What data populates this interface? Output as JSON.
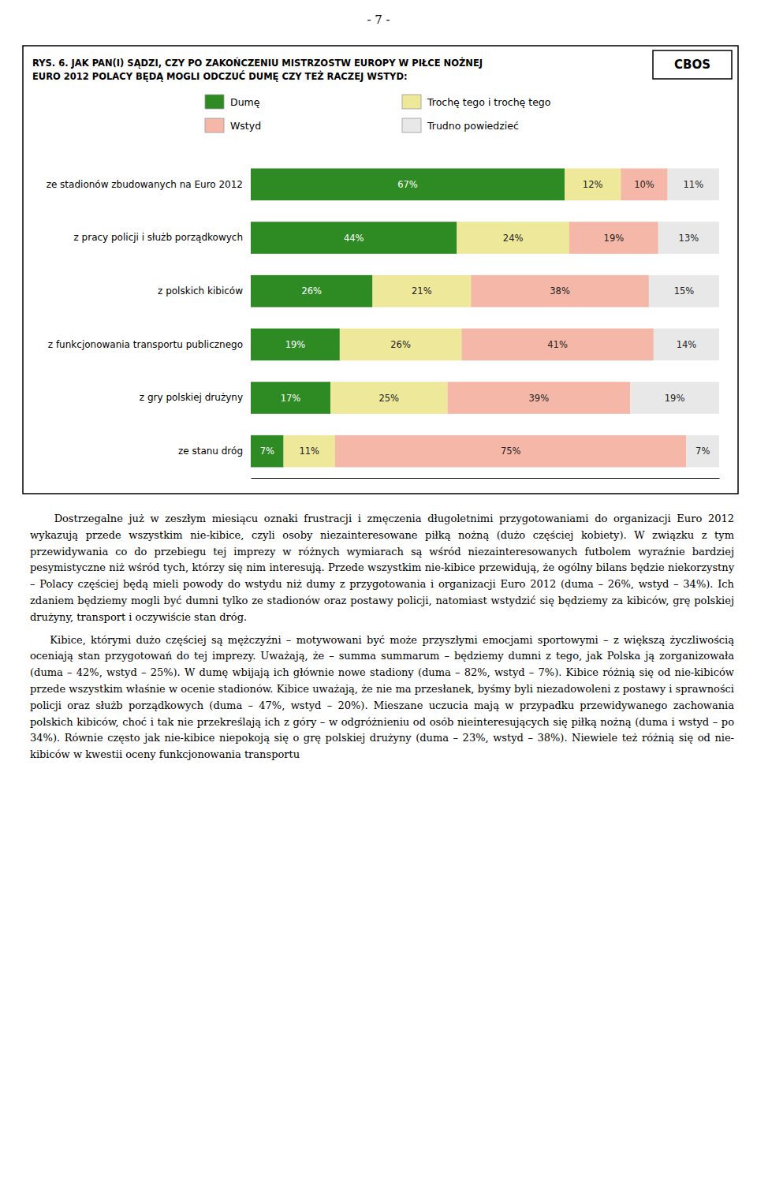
{
  "chart_data": {
    "type": "bar",
    "orientation": "horizontal",
    "stacked": true,
    "data_labels": true,
    "tick_labels": "y",
    "legend": "top",
    "title": "RYS. 6. JAK PAN(I) SĄDZI, CZY PO ZAKOŃCZENIU MISTRZOSTW EUROPY W PIŁCE NOŻNEJ\nEURO 2012 POLACY BĘDĄ MOGLI ODCZUĆ DUMĘ CZY TEŻ RACZEJ WSTYD:",
    "annotations": [
      "CBOS"
    ],
    "categories": [
      "ze stadionów zbudowanych na Euro 2012",
      "z pracy policji i służb porządkowych",
      "z polskich kibiców",
      "z funkcjonowania transportu publicznego",
      "z gry polskiej drużyny",
      "ze stanu dróg"
    ],
    "xlim": [
      0,
      100
    ],
    "series": [
      {
        "name": "Dumę",
        "color": "#2E8B24",
        "values": [
          67,
          44,
          26,
          19,
          17,
          7
        ],
        "value_labels": [
          "67%",
          "44%",
          "26%",
          "19%",
          "17%",
          "7%"
        ]
      },
      {
        "name": "Trochę tego i trochę tego",
        "color": "#EDE89A",
        "values": [
          12,
          24,
          21,
          26,
          25,
          11
        ],
        "value_labels": [
          "12%",
          "24%",
          "21%",
          "26%",
          "25%",
          "11%"
        ]
      },
      {
        "name": "Wstyd",
        "color": "#F5B8A8",
        "values": [
          10,
          19,
          38,
          41,
          39,
          75
        ],
        "value_labels": [
          "10%",
          "19%",
          "38%",
          "41%",
          "39%",
          "75%"
        ]
      },
      {
        "name": "Trudno powiedzieć",
        "color": "#E8E8E8",
        "values": [
          11,
          13,
          15,
          14,
          19,
          7
        ],
        "value_labels": [
          "11%",
          "13%",
          "15%",
          "14%",
          "19%",
          "7%"
        ]
      }
    ]
  },
  "page_number": "- 7 -",
  "paragraphs": [
    "    Dostrzegalne już w zeszłym miesiącu oznaki frustracji i zmęczenia długoletnimi przygotowaniami do organizacji Euro 2012 wykazują przede wszystkim nie-kibice, czyli osoby niezainteresowane piłką nożną (dużo częściej kobiety). W związku z tym przewidywania co do przebiegu tej imprezy w różnych wymiarach są wśród niezainteresowanych futbolem wyraźnie bardziej pesymistyczne niż wśród tych, którzy się nim interesują. Przede wszystkim nie-kibice przewidują, że ogólny bilans będzie niekorzystny – Polacy częściej będą mieli powody do wstydu niż dumy z przygotowania i organizacji Euro 2012 (duma – 26%, wstyd – 34%). Ich zdaniem będziemy mogli być dumni tylko ze stadionów oraz postawy policji, natomiast wstydzić się będziemy za kibiców, grę polskiej drużyny, transport i oczywiście stan dróg.",
    "    Kibice, którymi dużo częściej są mężczyźni – motywowani być może przyszłymi emocjami sportowymi – z większą życzliwością oceniają stan przygotowań do tej imprezy. Uważają, że – summa summarum – będziemy dumni z tego, jak Polska ją zorganizowała (duma – 42%, wstyd – 25%). W dumę wbijają ich głównie nowe stadiony (duma – 82%, wstyd – 7%). Kibice różnią się od nie-kibiców przede wszystkim właśnie w ocenie stadionów. Kibice uważają, że nie ma przesłanek, byśmy byli niezadowoleni z postawy i sprawności policji oraz służb porządkowych (duma – 47%, wstyd – 20%). Mieszane uczucia mają w przypadku przewidywanego zachowania polskich kibiców, choć i tak nie przekreślają ich z góry – w odgróżnieniu od osób nieinteresujących się piłką nożną (duma i wstyd – po 34%). Równie często jak nie-kibice niepokoją się o grę polskiej drużyny (duma – 23%, wstyd – 38%). Niewiele też różnią się od nie-kibiców w kwestii oceny funkcjonowania transportu"
  ]
}
